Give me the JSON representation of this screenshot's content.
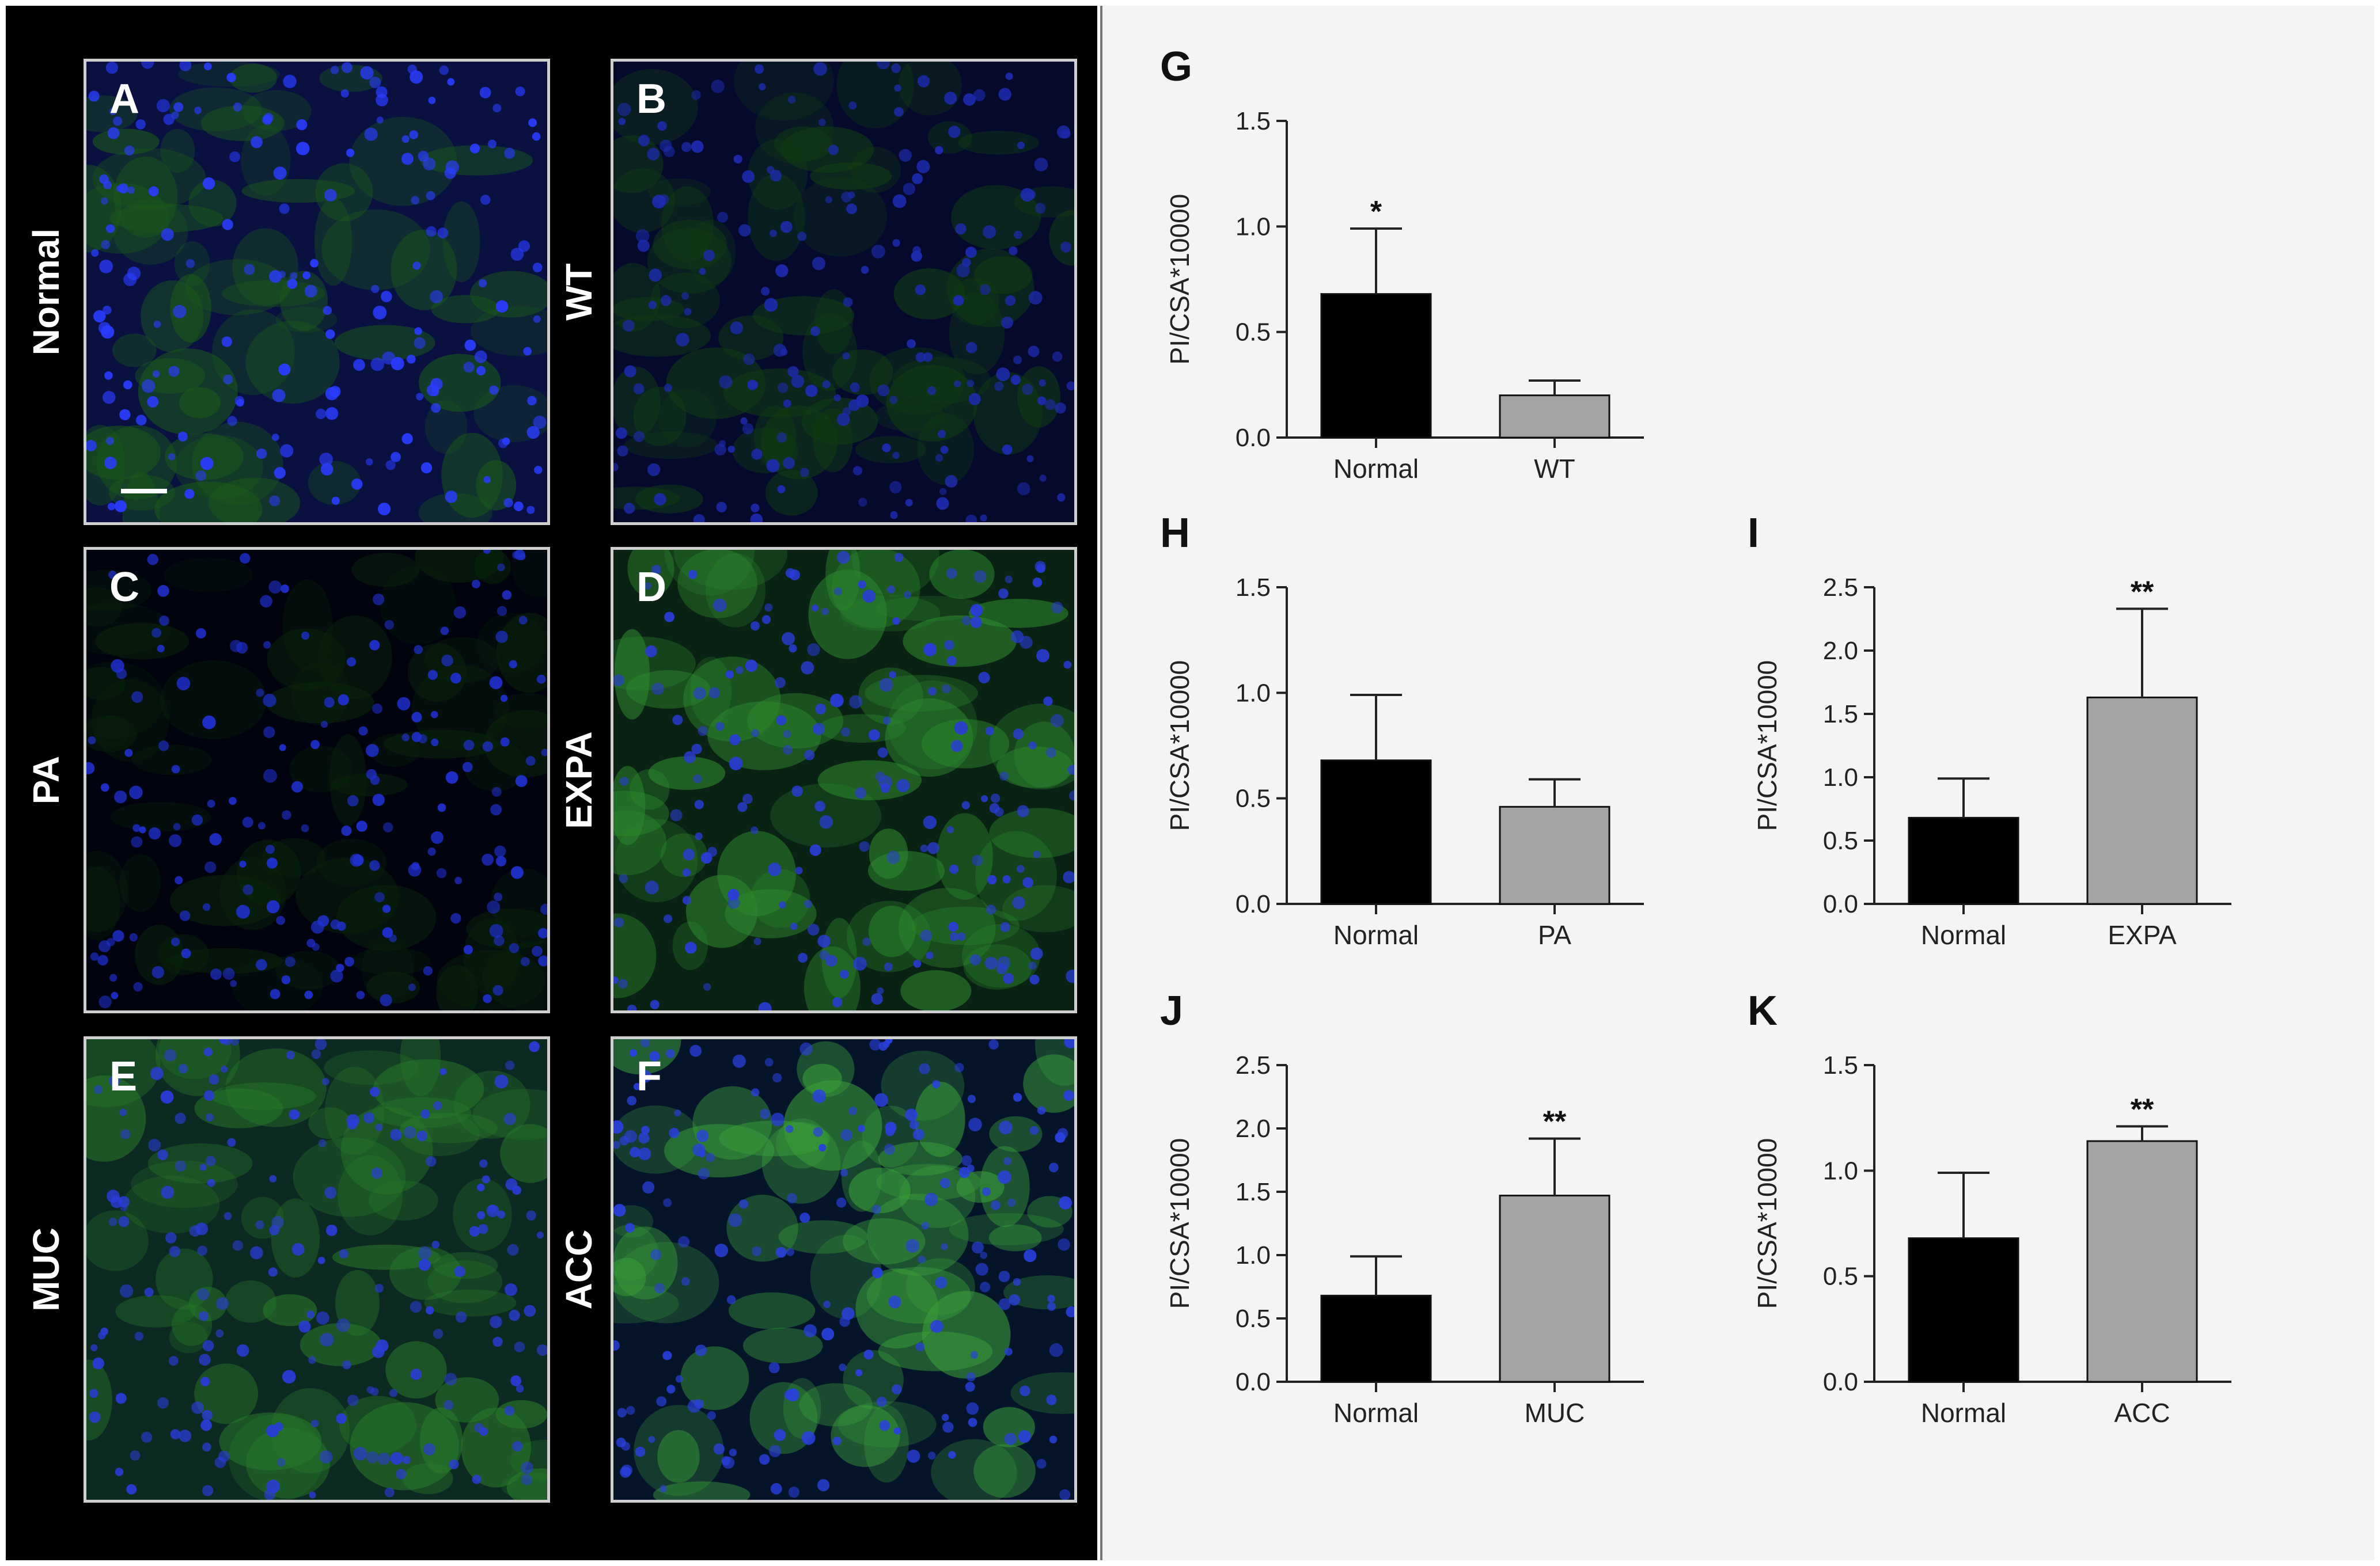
{
  "micrographs": [
    {
      "letter": "A",
      "label": "Normal",
      "tint": "#0a1040",
      "accent": "#2a3cff",
      "green": "#1a5a1a"
    },
    {
      "letter": "B",
      "label": "WT",
      "tint": "#050a2c",
      "accent": "#1e2bb0",
      "green": "#123d12"
    },
    {
      "letter": "C",
      "label": "PA",
      "tint": "#01030f",
      "accent": "#2030d0",
      "green": "#0a240a"
    },
    {
      "letter": "D",
      "label": "EXPA",
      "tint": "#0a2214",
      "accent": "#2a3cd8",
      "green": "#2e8a2e"
    },
    {
      "letter": "E",
      "label": "MUC",
      "tint": "#0c2a22",
      "accent": "#2a3cd8",
      "green": "#2a7a2a"
    },
    {
      "letter": "F",
      "label": "ACC",
      "tint": "#06142a",
      "accent": "#2a40e0",
      "green": "#3aa03a"
    }
  ],
  "chart_data": [
    {
      "panel": "G",
      "type": "bar",
      "ylabel": "PI/CSA*10000",
      "categories": [
        "Normal",
        "WT"
      ],
      "values": [
        0.68,
        0.2
      ],
      "errors": [
        0.31,
        0.07
      ],
      "ylim": [
        0,
        1.5
      ],
      "yticks": [
        "0.0",
        "0.5",
        "1.0",
        "1.5"
      ],
      "annotations": [
        "*",
        ""
      ],
      "colors": [
        "#000000",
        "#a3a3a3"
      ]
    },
    {
      "panel": "H",
      "type": "bar",
      "ylabel": "PI/CSA*10000",
      "categories": [
        "Normal",
        "PA"
      ],
      "values": [
        0.68,
        0.46
      ],
      "errors": [
        0.31,
        0.13
      ],
      "ylim": [
        0,
        1.5
      ],
      "yticks": [
        "0.0",
        "0.5",
        "1.0",
        "1.5"
      ],
      "annotations": [
        "",
        ""
      ],
      "colors": [
        "#000000",
        "#a3a3a3"
      ]
    },
    {
      "panel": "I",
      "type": "bar",
      "ylabel": "PI/CSA*10000",
      "categories": [
        "Normal",
        "EXPA"
      ],
      "values": [
        0.68,
        1.63
      ],
      "errors": [
        0.31,
        0.7
      ],
      "ylim": [
        0,
        2.5
      ],
      "yticks": [
        "0.0",
        "0.5",
        "1.0",
        "1.5",
        "2.0",
        "2.5"
      ],
      "annotations": [
        "",
        "**"
      ],
      "colors": [
        "#000000",
        "#a3a3a3"
      ]
    },
    {
      "panel": "J",
      "type": "bar",
      "ylabel": "PI/CSA*10000",
      "categories": [
        "Normal",
        "MUC"
      ],
      "values": [
        0.68,
        1.47
      ],
      "errors": [
        0.31,
        0.45
      ],
      "ylim": [
        0,
        2.5
      ],
      "yticks": [
        "0.0",
        "0.5",
        "1.0",
        "1.5",
        "2.0",
        "2.5"
      ],
      "annotations": [
        "",
        "**"
      ],
      "colors": [
        "#000000",
        "#a3a3a3"
      ]
    },
    {
      "panel": "K",
      "type": "bar",
      "ylabel": "PI/CSA*10000",
      "categories": [
        "Normal",
        "ACC"
      ],
      "values": [
        0.68,
        1.14
      ],
      "errors": [
        0.31,
        0.07
      ],
      "ylim": [
        0,
        1.5
      ],
      "yticks": [
        "0.0",
        "0.5",
        "1.0",
        "1.5"
      ],
      "annotations": [
        "",
        "**"
      ],
      "colors": [
        "#000000",
        "#a3a3a3"
      ]
    }
  ]
}
